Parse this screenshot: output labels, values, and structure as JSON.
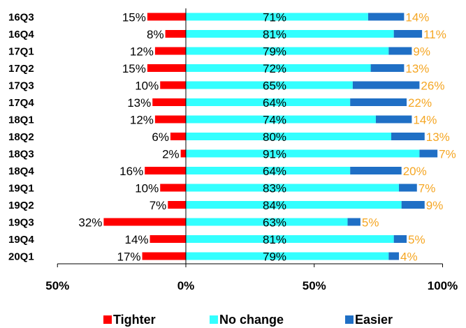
{
  "chart_data": {
    "type": "bar",
    "orientation": "horizontal",
    "stacked": true,
    "categories": [
      "16Q3",
      "16Q4",
      "17Q1",
      "17Q2",
      "17Q3",
      "17Q4",
      "18Q1",
      "18Q2",
      "18Q3",
      "18Q4",
      "19Q1",
      "19Q2",
      "19Q3",
      "19Q4",
      "20Q1"
    ],
    "series": [
      {
        "name": "Tighter",
        "color": "#ff0000",
        "direction": "negative",
        "values": [
          15,
          8,
          12,
          15,
          10,
          13,
          12,
          6,
          2,
          16,
          10,
          7,
          32,
          14,
          17
        ],
        "labels": [
          "15%",
          "8%",
          "12%",
          "15%",
          "10%",
          "13%",
          "12%",
          "6%",
          "2%",
          "16%",
          "10%",
          "7%",
          "32%",
          "14%",
          "17%"
        ],
        "label_color": "#000000"
      },
      {
        "name": "No change",
        "color": "#33ffff",
        "direction": "positive",
        "values": [
          71,
          81,
          79,
          72,
          65,
          64,
          74,
          80,
          91,
          64,
          83,
          84,
          63,
          81,
          79
        ],
        "labels": [
          "71%",
          "81%",
          "79%",
          "72%",
          "65%",
          "64%",
          "74%",
          "80%",
          "91%",
          "64%",
          "83%",
          "84%",
          "63%",
          "81%",
          "79%"
        ],
        "label_color": "#000000"
      },
      {
        "name": "Easier",
        "color": "#1f6fc5",
        "direction": "positive",
        "values": [
          14,
          11,
          9,
          13,
          26,
          22,
          14,
          13,
          7,
          20,
          7,
          9,
          5,
          5,
          4
        ],
        "labels": [
          "14%",
          "11%",
          "9%",
          "13%",
          "26%",
          "22%",
          "14%",
          "13%",
          "7%",
          "20%",
          "7%",
          "9%",
          "5%",
          "5%",
          "4%"
        ],
        "label_color": "#f5a623"
      }
    ],
    "xlim": [
      -50,
      100
    ],
    "xticks": [
      -50,
      0,
      50,
      100
    ],
    "xtick_labels": [
      "50%",
      "0%",
      "50%",
      "100%"
    ],
    "legend": {
      "position": "bottom",
      "entries": [
        "Tighter",
        "No change",
        "Easier"
      ]
    },
    "grid": false
  }
}
